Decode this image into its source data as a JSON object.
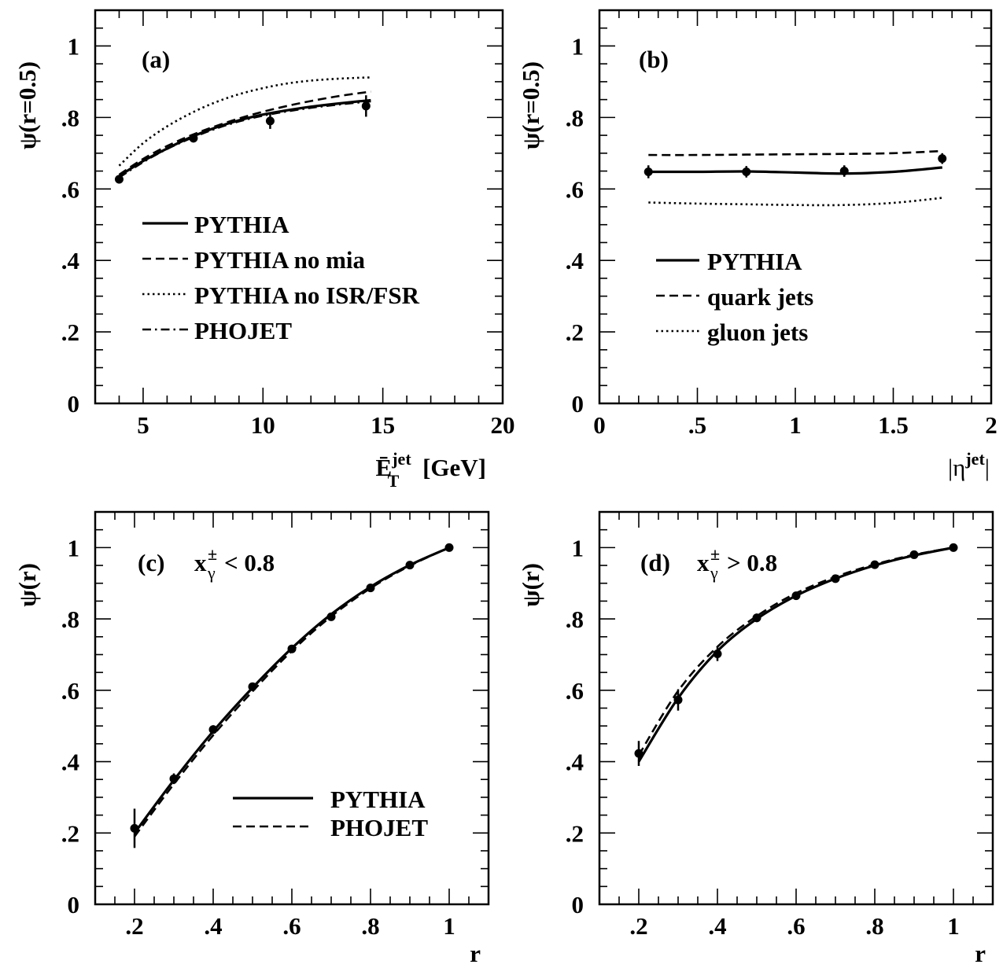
{
  "chart_data": [
    {
      "id": "a",
      "type": "line",
      "panel_label": "(a)",
      "xlabel": "Ē_T^jet [GeV]",
      "ylabel": "ψ(r=0.5)",
      "xlim": [
        3,
        20
      ],
      "ylim": [
        0,
        1.1
      ],
      "xticks": [
        5,
        10,
        15,
        20
      ],
      "yticks": [
        0,
        0.2,
        0.4,
        0.6,
        0.8,
        1
      ],
      "legend": {
        "placement": "lower-left"
      },
      "data_points": {
        "x": [
          4,
          7.1,
          10.3,
          14.3
        ],
        "y": [
          0.627,
          0.742,
          0.79,
          0.832
        ],
        "yerr": [
          0.012,
          0.012,
          0.022,
          0.03
        ]
      },
      "series": [
        {
          "name": "PYTHIA",
          "style": "solid",
          "x": [
            4,
            5,
            6,
            7,
            8,
            9,
            10,
            11,
            12,
            13,
            14,
            14.5
          ],
          "y": [
            0.636,
            0.678,
            0.713,
            0.745,
            0.771,
            0.792,
            0.808,
            0.82,
            0.83,
            0.838,
            0.845,
            0.848
          ]
        },
        {
          "name": "PYTHIA no mia",
          "style": "dashed",
          "x": [
            4,
            5,
            6,
            7,
            8,
            9,
            10,
            11,
            12,
            13,
            14,
            14.5
          ],
          "y": [
            0.64,
            0.684,
            0.72,
            0.75,
            0.775,
            0.797,
            0.816,
            0.832,
            0.846,
            0.858,
            0.868,
            0.872
          ]
        },
        {
          "name": "PYTHIA no ISR/FSR",
          "style": "dotted",
          "x": [
            4,
            5,
            6,
            7,
            8,
            9,
            10,
            11,
            12,
            13,
            14,
            14.5
          ],
          "y": [
            0.665,
            0.728,
            0.775,
            0.812,
            0.842,
            0.865,
            0.882,
            0.895,
            0.903,
            0.908,
            0.911,
            0.912
          ]
        },
        {
          "name": "PHOJET",
          "style": "dashdot",
          "x": [
            4,
            5,
            6,
            7,
            8,
            9,
            10,
            11,
            12,
            13,
            14,
            14.5
          ],
          "y": [
            0.632,
            0.675,
            0.712,
            0.742,
            0.768,
            0.789,
            0.805,
            0.817,
            0.827,
            0.835,
            0.842,
            0.845
          ]
        }
      ]
    },
    {
      "id": "b",
      "type": "line",
      "panel_label": "(b)",
      "xlabel": "|η^jet|",
      "ylabel": "ψ(r=0.5)",
      "xlim": [
        0,
        2
      ],
      "ylim": [
        0,
        1.1
      ],
      "xticks": [
        0,
        0.5,
        1,
        1.5,
        2
      ],
      "yticks": [
        0,
        0.2,
        0.4,
        0.6,
        0.8,
        1
      ],
      "legend": {
        "placement": "lower-left"
      },
      "data_points": {
        "x": [
          0.25,
          0.75,
          1.25,
          1.75
        ],
        "y": [
          0.648,
          0.648,
          0.65,
          0.685
        ],
        "yerr": [
          0.018,
          0.016,
          0.016,
          0.015
        ]
      },
      "series": [
        {
          "name": "PYTHIA",
          "style": "solid",
          "x": [
            0.25,
            0.5,
            0.75,
            1,
            1.25,
            1.5,
            1.75
          ],
          "y": [
            0.648,
            0.648,
            0.649,
            0.646,
            0.643,
            0.648,
            0.66
          ]
        },
        {
          "name": "quark jets",
          "style": "dashed",
          "x": [
            0.25,
            0.5,
            0.75,
            1,
            1.25,
            1.5,
            1.75
          ],
          "y": [
            0.695,
            0.695,
            0.696,
            0.697,
            0.698,
            0.7,
            0.706
          ]
        },
        {
          "name": "gluon jets",
          "style": "dotted",
          "x": [
            0.25,
            0.5,
            0.75,
            1,
            1.25,
            1.5,
            1.75
          ],
          "y": [
            0.562,
            0.559,
            0.557,
            0.555,
            0.555,
            0.561,
            0.575
          ]
        }
      ]
    },
    {
      "id": "c",
      "type": "line",
      "panel_label": "(c)",
      "panel_note": {
        "x": "x",
        "sup": "±",
        "sub": "γ",
        "rel": "< 0.8"
      },
      "xlabel": "r",
      "ylabel": "ψ(r)",
      "xlim": [
        0.1,
        1.1
      ],
      "ylim": [
        0,
        1.1
      ],
      "xticks": [
        0.2,
        0.4,
        0.6,
        0.8,
        1
      ],
      "yticks": [
        0,
        0.2,
        0.4,
        0.6,
        0.8,
        1
      ],
      "legend": {
        "placement": "lower-right"
      },
      "data_points": {
        "x": [
          0.2,
          0.3,
          0.4,
          0.5,
          0.6,
          0.7,
          0.8,
          0.9,
          1.0
        ],
        "y": [
          0.213,
          0.352,
          0.49,
          0.61,
          0.716,
          0.806,
          0.887,
          0.951,
          1.0
        ],
        "yerr": [
          0.055,
          0.015,
          0.012,
          0.01,
          0.008,
          0.006,
          0.005,
          0.004,
          0.0
        ]
      },
      "series": [
        {
          "name": "PYTHIA",
          "style": "solid",
          "x": [
            0.2,
            0.3,
            0.4,
            0.5,
            0.6,
            0.7,
            0.8,
            0.9,
            1.0
          ],
          "y": [
            0.2,
            0.348,
            0.485,
            0.607,
            0.718,
            0.813,
            0.89,
            0.951,
            1.0
          ]
        },
        {
          "name": "PHOJET",
          "style": "dashed",
          "x": [
            0.2,
            0.3,
            0.4,
            0.5,
            0.6,
            0.7,
            0.8,
            0.9,
            1.0
          ],
          "y": [
            0.19,
            0.337,
            0.474,
            0.597,
            0.71,
            0.807,
            0.886,
            0.949,
            1.0
          ]
        }
      ]
    },
    {
      "id": "d",
      "type": "line",
      "panel_label": "(d)",
      "panel_note": {
        "x": "x",
        "sup": "±",
        "sub": "γ",
        "rel": "> 0.8"
      },
      "xlabel": "r",
      "ylabel": "ψ(r)",
      "xlim": [
        0.1,
        1.1
      ],
      "ylim": [
        0,
        1.1
      ],
      "xticks": [
        0.2,
        0.4,
        0.6,
        0.8,
        1
      ],
      "yticks": [
        0,
        0.2,
        0.4,
        0.6,
        0.8,
        1
      ],
      "data_points": {
        "x": [
          0.2,
          0.3,
          0.4,
          0.5,
          0.6,
          0.7,
          0.8,
          0.9,
          1.0
        ],
        "y": [
          0.423,
          0.573,
          0.702,
          0.803,
          0.865,
          0.913,
          0.952,
          0.98,
          1.0
        ],
        "yerr": [
          0.035,
          0.03,
          0.02,
          0.012,
          0.008,
          0.006,
          0.004,
          0.003,
          0.0
        ]
      },
      "series": [
        {
          "name": "PYTHIA",
          "style": "solid",
          "x": [
            0.2,
            0.3,
            0.4,
            0.5,
            0.6,
            0.7,
            0.8,
            0.9,
            1.0
          ],
          "y": [
            0.4,
            0.578,
            0.71,
            0.8,
            0.865,
            0.913,
            0.95,
            0.978,
            1.0
          ]
        },
        {
          "name": "PHOJET",
          "style": "dashed",
          "x": [
            0.2,
            0.3,
            0.4,
            0.5,
            0.6,
            0.7,
            0.8,
            0.9,
            1.0
          ],
          "y": [
            0.418,
            0.598,
            0.722,
            0.808,
            0.872,
            0.918,
            0.953,
            0.98,
            1.0
          ]
        }
      ]
    }
  ]
}
